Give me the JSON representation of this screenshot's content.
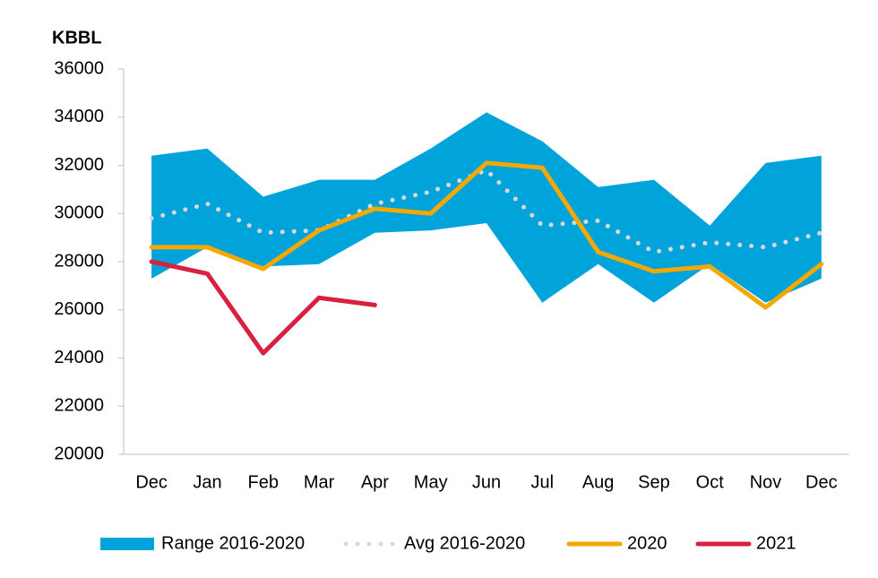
{
  "chart_data": {
    "type": "line",
    "y_label": "KBBL",
    "categories": [
      "Dec",
      "Jan",
      "Feb",
      "Mar",
      "Apr",
      "May",
      "Jun",
      "Jul",
      "Aug",
      "Sep",
      "Oct",
      "Nov",
      "Dec"
    ],
    "ylim": [
      20000,
      36000
    ],
    "yticks": [
      20000,
      22000,
      24000,
      26000,
      28000,
      30000,
      32000,
      34000,
      36000
    ],
    "series": [
      {
        "name": "Range 2016-2020",
        "color": "#00a3da",
        "style": "area",
        "upper": [
          32400,
          32700,
          30700,
          31400,
          31400,
          32700,
          34200,
          33000,
          31100,
          31400,
          29500,
          32100,
          32400
        ],
        "lower": [
          27300,
          28600,
          27800,
          27900,
          29200,
          29300,
          29600,
          26300,
          27900,
          26300,
          27900,
          26300,
          27300
        ]
      },
      {
        "name": "Avg 2016-2020",
        "color": "#d9d9d9",
        "style": "dotted",
        "values": [
          29800,
          30400,
          29200,
          29300,
          30400,
          30900,
          31800,
          29500,
          29700,
          28400,
          28800,
          28600,
          29200
        ]
      },
      {
        "name": "2020",
        "color": "#f5a800",
        "style": "solid",
        "values": [
          28600,
          28600,
          27700,
          29300,
          30200,
          30000,
          32100,
          31900,
          28400,
          27600,
          27800,
          26100,
          27900
        ]
      },
      {
        "name": "2021",
        "color": "#d9203f",
        "style": "solid",
        "values": [
          28000,
          27500,
          24200,
          26500,
          26200,
          null,
          null,
          null,
          null,
          null,
          null,
          null,
          null
        ]
      }
    ]
  }
}
